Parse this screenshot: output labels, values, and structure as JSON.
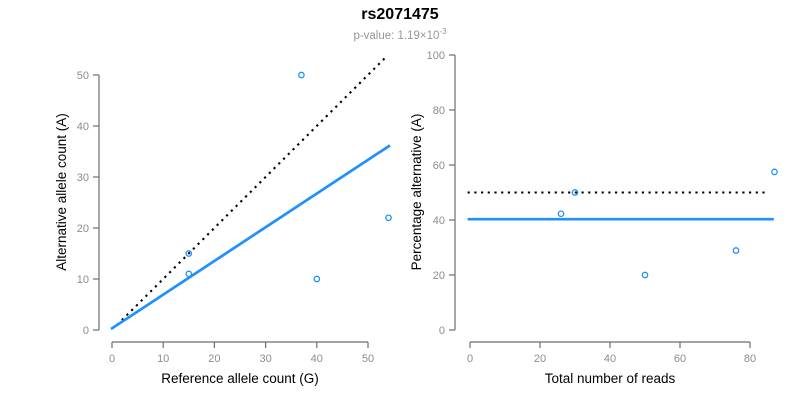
{
  "header": {
    "title": "rs2071475",
    "pvalue_label": "p-value: ",
    "pvalue_base": "1.19×10",
    "pvalue_exponent": "-3"
  },
  "colors": {
    "accent_blue": "#1E90FF",
    "line_black": "#000000",
    "axis_gray": "#6e6e6e",
    "tick_label_gray": "#8c8c8c",
    "subtitle_gray": "#979797",
    "background": "#ffffff"
  },
  "chart_data": [
    {
      "type": "scatter",
      "position": "left",
      "title": "",
      "xlabel": "Reference allele count (G)",
      "ylabel": "Alternative allele count (A)",
      "xlim": [
        0,
        54.5
      ],
      "ylim": [
        0,
        54.5
      ],
      "xticks": [
        0,
        10,
        20,
        30,
        40,
        50
      ],
      "yticks": [
        0,
        10,
        20,
        30,
        40,
        50
      ],
      "grid": false,
      "legend": "none",
      "points": [
        [
          15,
          11
        ],
        [
          15,
          15
        ],
        [
          37,
          50
        ],
        [
          40,
          10
        ],
        [
          54,
          22
        ]
      ],
      "lines": [
        {
          "name": "identity-line",
          "style": "dotted",
          "color": "#000000",
          "from": [
            1,
            1
          ],
          "to": [
            53.7,
            53.7
          ]
        },
        {
          "name": "regression-line",
          "style": "solid",
          "color": "#1E90FF",
          "from": [
            -0.2,
            0.2
          ],
          "to": [
            54.3,
            36.2
          ]
        }
      ]
    },
    {
      "type": "scatter",
      "position": "right",
      "title": "",
      "xlabel": "Total number of reads",
      "ylabel": "Percentage alternative (A)",
      "xlim": [
        0,
        87
      ],
      "ylim": [
        0,
        100
      ],
      "xticks": [
        0,
        20,
        40,
        60,
        80
      ],
      "yticks": [
        0,
        20,
        40,
        60,
        80,
        100
      ],
      "grid": false,
      "legend": "none",
      "points": [
        [
          26,
          42.3
        ],
        [
          30,
          50
        ],
        [
          50,
          20
        ],
        [
          76,
          28.9
        ],
        [
          87,
          57.5
        ]
      ],
      "lines": [
        {
          "name": "expected-50pct-line",
          "style": "dotted",
          "color": "#000000",
          "from": [
            -0.7,
            50
          ],
          "to": [
            85.3,
            50
          ]
        },
        {
          "name": "mean-percentage-line",
          "style": "solid",
          "color": "#1E90FF",
          "from": [
            -0.7,
            40.3
          ],
          "to": [
            86.8,
            40.3
          ]
        }
      ]
    }
  ]
}
